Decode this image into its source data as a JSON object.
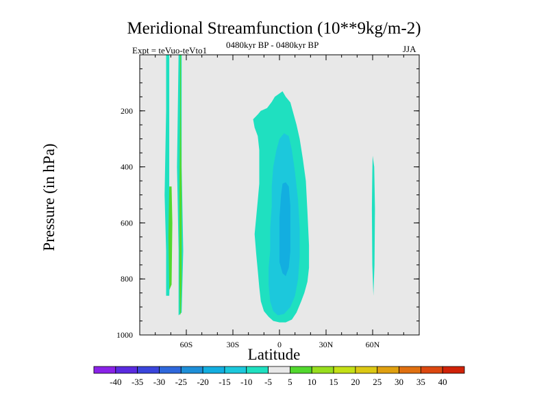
{
  "chart_data": {
    "type": "heatmap",
    "title": "Meridional Streamfunction (10**9kg/m-2)",
    "subtitle_left": "Expt = teVuo-teVto1",
    "subtitle_center": "0480kyr BP - 0480kyr BP",
    "subtitle_right": "JJA",
    "xlabel": "Latitude",
    "ylabel": "Pressure (in hPa)",
    "xlim": [
      -90,
      90
    ],
    "ylim": [
      1000,
      0
    ],
    "x_ticks": [
      {
        "value": -60,
        "label": "60S"
      },
      {
        "value": -30,
        "label": "30S"
      },
      {
        "value": 0,
        "label": "0"
      },
      {
        "value": 30,
        "label": "30N"
      },
      {
        "value": 60,
        "label": "60N"
      }
    ],
    "y_ticks": [
      {
        "value": 200,
        "label": "200"
      },
      {
        "value": 400,
        "label": "400"
      },
      {
        "value": 600,
        "label": "600"
      },
      {
        "value": 800,
        "label": "800"
      },
      {
        "value": 1000,
        "label": "1000"
      }
    ],
    "background_color": "#e8e8e8",
    "colorbar": {
      "labels": [
        "-40",
        "-35",
        "-30",
        "-25",
        "-20",
        "-15",
        "-10",
        "-5",
        "5",
        "10",
        "15",
        "20",
        "25",
        "30",
        "35",
        "40"
      ],
      "colors": [
        "#8a22e8",
        "#5a2be0",
        "#3a45dc",
        "#2f68dc",
        "#1e8fd8",
        "#13aee0",
        "#1cc8dc",
        "#1fe0c0",
        "#e8e8e8",
        "#52d82e",
        "#98de1e",
        "#c4e016",
        "#dcc814",
        "#e0a010",
        "#e07010",
        "#dc4810",
        "#d02208"
      ]
    },
    "regions": [
      {
        "level": "-10 to -5",
        "color": "#1fe0c0",
        "polygon": [
          [
            -14,
            213
          ],
          [
            -12,
            200
          ],
          [
            -8,
            190
          ],
          [
            -5,
            168
          ],
          [
            -3,
            150
          ],
          [
            2,
            130
          ],
          [
            4,
            150
          ],
          [
            7,
            170
          ],
          [
            9,
            210
          ],
          [
            11,
            250
          ],
          [
            13,
            300
          ],
          [
            15,
            370
          ],
          [
            17,
            450
          ],
          [
            18,
            560
          ],
          [
            19,
            680
          ],
          [
            19,
            760
          ],
          [
            18,
            810
          ],
          [
            16,
            850
          ],
          [
            14,
            880
          ],
          [
            11,
            920
          ],
          [
            8,
            945
          ],
          [
            4,
            955
          ],
          [
            0,
            955
          ],
          [
            -4,
            950
          ],
          [
            -7,
            935
          ],
          [
            -10,
            915
          ],
          [
            -12,
            880
          ],
          [
            -13,
            830
          ],
          [
            -14,
            770
          ],
          [
            -15,
            710
          ],
          [
            -16,
            640
          ],
          [
            -15,
            580
          ],
          [
            -14,
            520
          ],
          [
            -13,
            460
          ],
          [
            -13,
            400
          ],
          [
            -13,
            340
          ],
          [
            -14,
            290
          ],
          [
            -16,
            260
          ],
          [
            -17,
            230
          ]
        ]
      },
      {
        "level": "-15 to -10",
        "color": "#1cc8dc",
        "polygon": [
          [
            -4,
            400
          ],
          [
            -2,
            340
          ],
          [
            0,
            300
          ],
          [
            3,
            280
          ],
          [
            6,
            290
          ],
          [
            8,
            340
          ],
          [
            10,
            420
          ],
          [
            12,
            520
          ],
          [
            13,
            620
          ],
          [
            13,
            720
          ],
          [
            12,
            800
          ],
          [
            10,
            860
          ],
          [
            7,
            900
          ],
          [
            3,
            925
          ],
          [
            -1,
            930
          ],
          [
            -4,
            915
          ],
          [
            -6,
            880
          ],
          [
            -7,
            820
          ],
          [
            -7,
            760
          ],
          [
            -6,
            700
          ],
          [
            -6,
            620
          ],
          [
            -5,
            540
          ],
          [
            -5,
            470
          ]
        ]
      },
      {
        "level": "-20 to -15",
        "color": "#13aee0",
        "polygon": [
          [
            1,
            500
          ],
          [
            2,
            460
          ],
          [
            4,
            455
          ],
          [
            6,
            470
          ],
          [
            7,
            540
          ],
          [
            7,
            620
          ],
          [
            7,
            700
          ],
          [
            6,
            760
          ],
          [
            4,
            790
          ],
          [
            2,
            780
          ],
          [
            0,
            740
          ],
          [
            0,
            660
          ],
          [
            0,
            580
          ]
        ]
      },
      {
        "level": "-10 to -5",
        "color": "#1fe0c0",
        "polygon": [
          [
            -73,
            0
          ],
          [
            -71,
            0
          ],
          [
            -71,
            200
          ],
          [
            -71,
            500
          ],
          [
            -70,
            700
          ],
          [
            -71,
            860
          ],
          [
            -73,
            860
          ],
          [
            -73,
            700
          ],
          [
            -74,
            500
          ],
          [
            -73,
            200
          ]
        ]
      },
      {
        "level": "-10 to -5",
        "color": "#1fe0c0",
        "polygon": [
          [
            -65,
            0
          ],
          [
            -63,
            0
          ],
          [
            -63,
            400
          ],
          [
            -62,
            700
          ],
          [
            -63,
            920
          ],
          [
            -65,
            930
          ],
          [
            -65,
            700
          ],
          [
            -66,
            400
          ]
        ]
      },
      {
        "level": "5 to 10",
        "color": "#52d82e",
        "polygon": [
          [
            -64,
            0
          ],
          [
            -63.5,
            0
          ],
          [
            -63.5,
            200
          ],
          [
            -63,
            500
          ],
          [
            -63,
            800
          ],
          [
            -63.5,
            920
          ],
          [
            -64,
            930
          ],
          [
            -64.5,
            800
          ],
          [
            -64.5,
            500
          ],
          [
            -64,
            200
          ]
        ]
      },
      {
        "level": "5 to 10",
        "color": "#52d82e",
        "polygon": [
          [
            -71,
            470
          ],
          [
            -69.5,
            470
          ],
          [
            -69,
            600
          ],
          [
            -69.5,
            820
          ],
          [
            -71,
            840
          ],
          [
            -71.5,
            650
          ]
        ]
      },
      {
        "level": "-10 to -5",
        "color": "#1fe0c0",
        "polygon": [
          [
            60,
            360
          ],
          [
            61,
            400
          ],
          [
            61.5,
            550
          ],
          [
            61.2,
            750
          ],
          [
            60.5,
            860
          ],
          [
            59.8,
            750
          ],
          [
            59.5,
            550
          ],
          [
            59.8,
            420
          ]
        ]
      }
    ]
  }
}
